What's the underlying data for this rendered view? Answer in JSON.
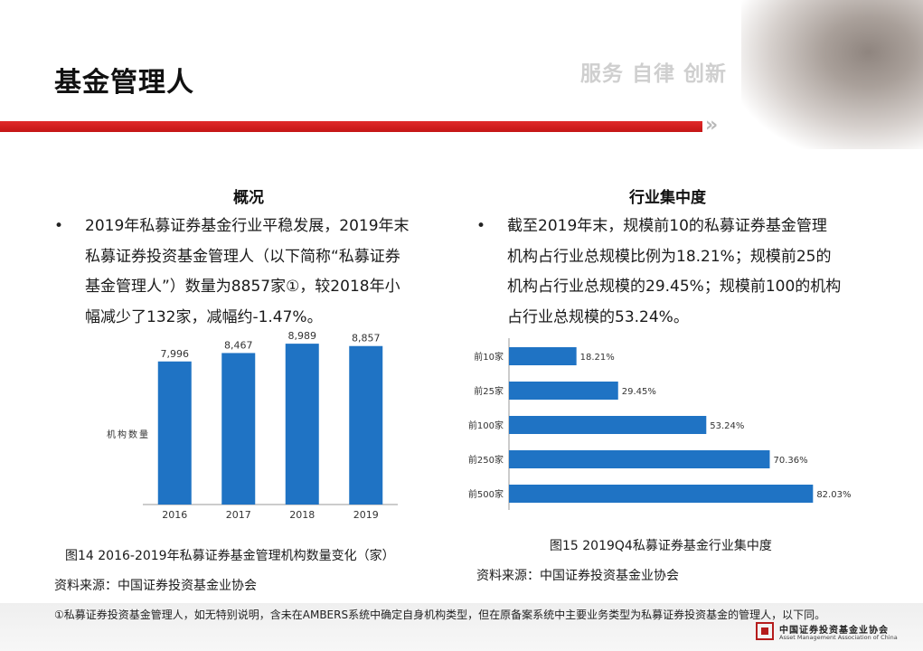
{
  "header": {
    "title": "基金管理人",
    "slogan": "服务 自律 创新"
  },
  "left": {
    "heading": "概况",
    "bullet": "•",
    "lines": [
      "2019年私募证券基金行业平稳发展，2019年末",
      "私募证券投资基金管理人（以下简称“私募证券",
      "基金管理人”）数量为8857家①，较2018年小",
      "幅减少了132家，减幅约-1.47%。"
    ],
    "caption": "图14 2016-2019年私募证券基金管理机构数量变化（家）",
    "source": "资料来源：中国证券投资基金业协会"
  },
  "right": {
    "heading": "行业集中度",
    "bullet": "•",
    "lines": [
      "截至2019年末，规模前10的私募证券基金管理",
      "机构占行业总规模比例为18.21%；规模前25的",
      "机构占行业总规模的29.45%；规模前100的机构",
      "占行业总规模的53.24%。"
    ],
    "caption": "图15 2019Q4私募证券基金行业集中度",
    "source": "资料来源：中国证券投资基金业协会"
  },
  "chart_data": [
    {
      "type": "bar",
      "categories": [
        "2016",
        "2017",
        "2018",
        "2019"
      ],
      "values": [
        7996,
        8467,
        8989,
        8857
      ],
      "value_labels": [
        "7,996",
        "8,467",
        "8,989",
        "8,857"
      ],
      "ylabel": "机构数量",
      "title": "",
      "color": "#1f73c4",
      "ylim": [
        0,
        9500
      ],
      "grid": false
    },
    {
      "type": "bar",
      "orientation": "horizontal",
      "categories": [
        "前10家",
        "前25家",
        "前100家",
        "前250家",
        "前500家"
      ],
      "values": [
        18.21,
        29.45,
        53.24,
        70.36,
        82.03
      ],
      "value_labels": [
        "18.21%",
        "29.45%",
        "53.24%",
        "70.36%",
        "82.03%"
      ],
      "title": "",
      "color": "#1f73c4",
      "xlim": [
        0,
        100
      ],
      "grid": false
    }
  ],
  "footer": {
    "footnote": "①私募证券投资基金管理人，如无特别说明，含未在AMBERS系统中确定自身机构类型，但在原备案系统中主要业务类型为私募证券投资基金的管理人，以下同。",
    "logo_cn": "中国证券投资基金业协会",
    "logo_en": "Asset Management Association of China"
  }
}
